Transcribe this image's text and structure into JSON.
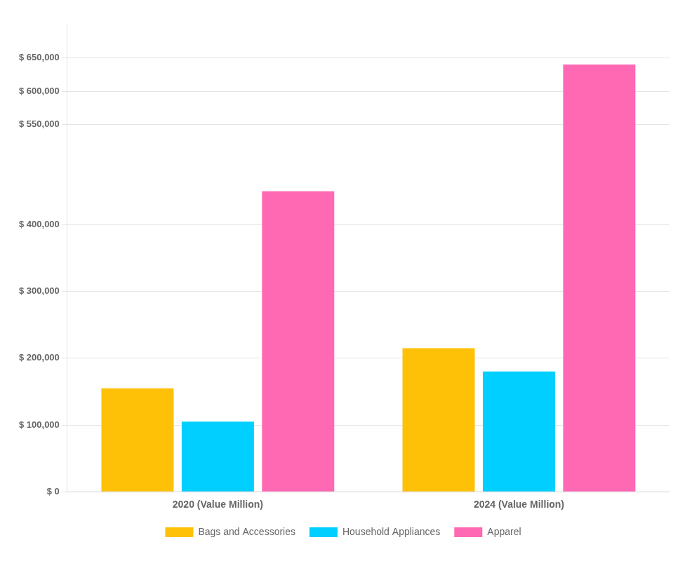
{
  "chart_data": {
    "type": "bar",
    "categories": [
      "2020 (Value Million)",
      "2024 (Value Million)"
    ],
    "series": [
      {
        "name": "Bags and Accessories",
        "color": "#FFC107",
        "values": [
          155000,
          215000
        ]
      },
      {
        "name": "Household Appliances",
        "color": "#00CFFF",
        "values": [
          105000,
          180000
        ]
      },
      {
        "name": "Apparel",
        "color": "#FF69B4",
        "values": [
          450000,
          640000
        ]
      }
    ],
    "ylim": [
      0,
      700000
    ],
    "yticks": [
      {
        "value": 0,
        "label": "$ 0"
      },
      {
        "value": 100000,
        "label": "$ 100,000"
      },
      {
        "value": 200000,
        "label": "$ 200,000"
      },
      {
        "value": 300000,
        "label": "$ 300,000"
      },
      {
        "value": 400000,
        "label": "$ 400,000"
      },
      {
        "value": 550000,
        "label": "$ 550,000"
      },
      {
        "value": 600000,
        "label": "$ 600,000"
      },
      {
        "value": 650000,
        "label": "$ 650,000"
      }
    ],
    "grid": true,
    "legend": "bottom"
  }
}
